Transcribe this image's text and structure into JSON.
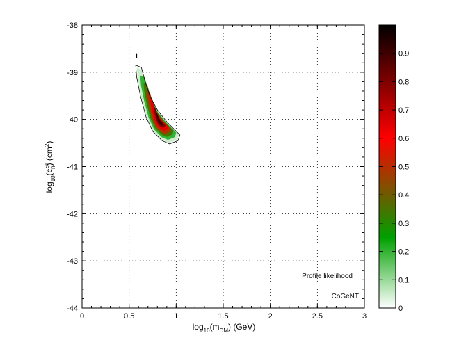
{
  "chart_data": {
    "type": "heatmap",
    "xlim": [
      0,
      3
    ],
    "ylim": [
      -44,
      -38
    ],
    "x_ticks": [
      "0",
      "0.5",
      "1",
      "1.5",
      "2",
      "2.5",
      "3"
    ],
    "y_ticks": [
      "-44",
      "-43",
      "-42",
      "-41",
      "-40",
      "-39",
      "-38"
    ],
    "grid": true,
    "colorbar": {
      "range": [
        0,
        1
      ],
      "ticks": [
        "0",
        "0.1",
        "0.2",
        "0.3",
        "0.4",
        "0.5",
        "0.6",
        "0.7",
        "0.8",
        "0.9"
      ],
      "colors": [
        "#ffffff",
        "#00a000",
        "#ff0000",
        "#000000"
      ]
    },
    "peak": {
      "x": 0.83,
      "y": -40.05,
      "value": 1.0
    },
    "region": {
      "outer_contour": [
        [
          0.57,
          -38.85
        ],
        [
          0.63,
          -38.9
        ],
        [
          0.67,
          -39.2
        ],
        [
          0.72,
          -39.5
        ],
        [
          0.8,
          -39.8
        ],
        [
          0.9,
          -40.05
        ],
        [
          1.0,
          -40.25
        ],
        [
          1.04,
          -40.33
        ],
        [
          1.02,
          -40.45
        ],
        [
          0.93,
          -40.52
        ],
        [
          0.85,
          -40.45
        ],
        [
          0.75,
          -40.25
        ],
        [
          0.68,
          -39.95
        ],
        [
          0.62,
          -39.5
        ],
        [
          0.58,
          -39.1
        ]
      ]
    },
    "annotations": [
      "Profile likelihood",
      "CoGeNT"
    ]
  }
}
